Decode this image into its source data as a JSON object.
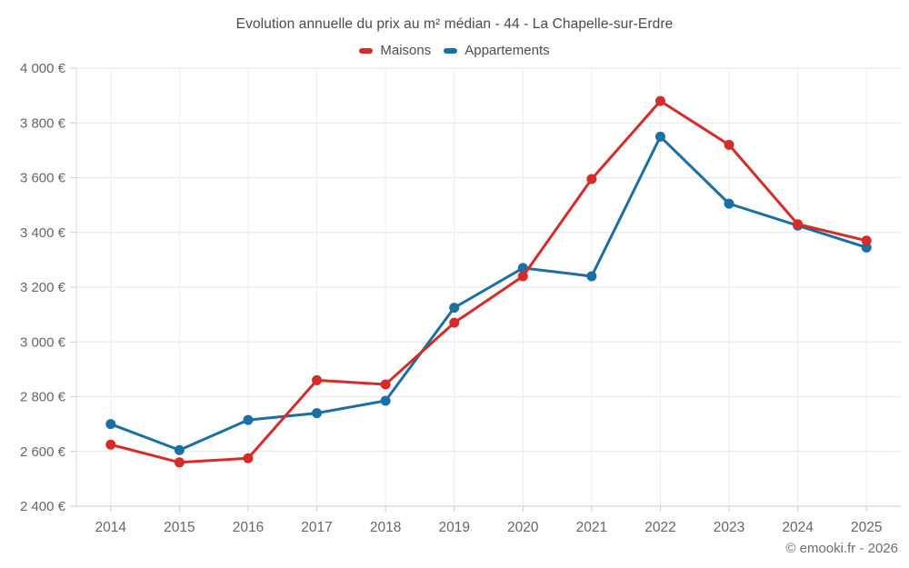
{
  "chart_data": {
    "type": "line",
    "title": "Evolution annuelle du prix au m² médian - 44 - La Chapelle-sur-Erdre",
    "categories": [
      "2014",
      "2015",
      "2016",
      "2017",
      "2018",
      "2019",
      "2020",
      "2021",
      "2022",
      "2023",
      "2024",
      "2025"
    ],
    "series": [
      {
        "name": "Maisons",
        "color": "#d62b28",
        "values": [
          2625,
          2560,
          2575,
          2860,
          2845,
          3070,
          3240,
          3595,
          3880,
          3720,
          3430,
          3370
        ]
      },
      {
        "name": "Appartements",
        "color": "#1a6fa5",
        "values": [
          2700,
          2605,
          2715,
          2740,
          2785,
          3125,
          3270,
          3240,
          3750,
          3505,
          3425,
          3345
        ]
      }
    ],
    "xlabel": "",
    "ylabel": "",
    "ylim": [
      2400,
      4000
    ],
    "y_ticks": [
      {
        "value": 2400,
        "label": "2 400 €"
      },
      {
        "value": 2600,
        "label": "2 600 €"
      },
      {
        "value": 2800,
        "label": "2 800 €"
      },
      {
        "value": 3000,
        "label": "3 000 €"
      },
      {
        "value": 3200,
        "label": "3 200 €"
      },
      {
        "value": 3400,
        "label": "3 400 €"
      },
      {
        "value": 3600,
        "label": "3 600 €"
      },
      {
        "value": 3800,
        "label": "3 800 €"
      },
      {
        "value": 4000,
        "label": "4 000 €"
      }
    ],
    "grid": true,
    "legend_position": "top",
    "credit": "© emooki.fr - 2026"
  },
  "colors": {
    "grid_h": "#e6e6e6",
    "grid_v": "#ededed",
    "axis": "#cccccc",
    "tick": "#cccccc",
    "tick_label": "#666666",
    "title_text": "#4a4a4a",
    "legend_text": "#4d4d4d",
    "credit_text": "#6e6e6e"
  }
}
